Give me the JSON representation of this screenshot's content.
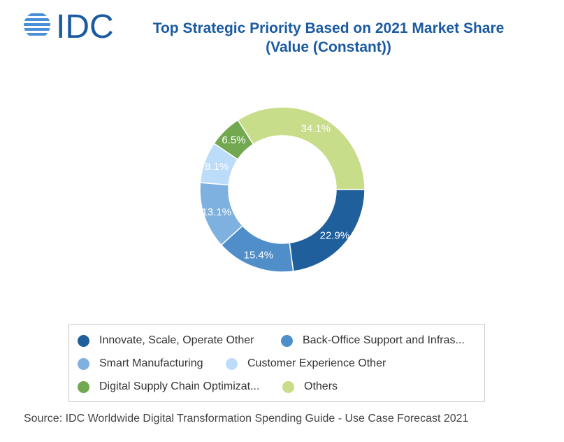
{
  "header": {
    "logo_text": "IDC",
    "title_line1": "Top Strategic Priority Based on 2021 Market Share",
    "title_line2": "(Value (Constant))"
  },
  "colors": {
    "brand": "#1a5aa0",
    "logo_lines": "#4a90d9"
  },
  "chart_data": {
    "type": "pie",
    "style": "donut",
    "slices": [
      {
        "label": "Innovate, Scale, Operate Other",
        "value": 22.9,
        "display": "22.9%",
        "color": "#1f5f9c"
      },
      {
        "label": "Back-Office Support and Infras...",
        "value": 15.4,
        "display": "15.4%",
        "color": "#4f8ec9"
      },
      {
        "label": "Smart Manufacturing",
        "value": 13.1,
        "display": "13.1%",
        "color": "#7fb1e0"
      },
      {
        "label": "Customer Experience Other",
        "value": 8.1,
        "display": "8.1%",
        "color": "#bcdcfa"
      },
      {
        "label": "Digital Supply Chain Optimizat...",
        "value": 6.5,
        "display": "6.5%",
        "color": "#71a850"
      },
      {
        "label": "Others",
        "value": 34.1,
        "display": "34.1%",
        "color": "#c7dd8a"
      }
    ],
    "legend_position": "bottom"
  },
  "source": "Source: IDC Worldwide Digital Transformation Spending Guide - Use Case Forecast 2021"
}
